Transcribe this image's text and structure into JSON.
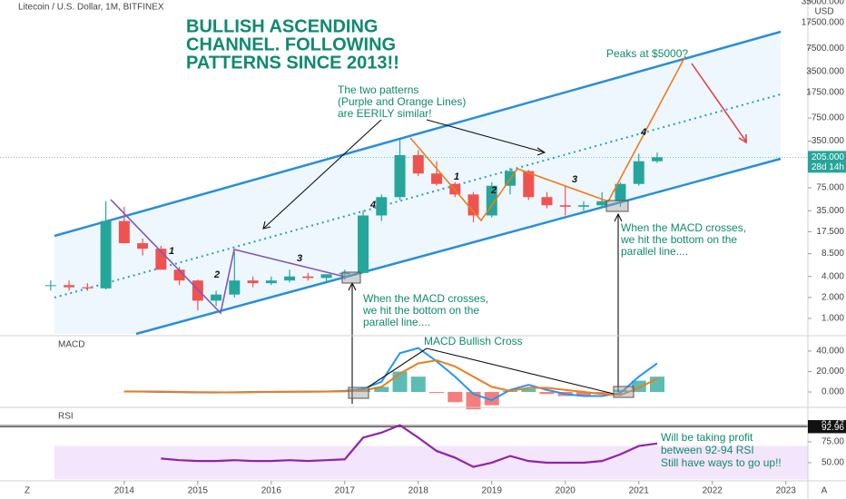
{
  "chart_data": [
    {
      "type": "candlestick",
      "title": "Litecoin / U.S. Dollar, 1M, BITFINEX",
      "y_unit": "USD",
      "log_scale": true,
      "up_color": "#26a69a",
      "down_color": "#ef5350",
      "xlim": [
        2012.31,
        2023.3
      ],
      "xticks": [
        2014,
        2015,
        2016,
        2017,
        2018,
        2019,
        2020,
        2021,
        2022,
        2023
      ],
      "ylim": [
        0.6,
        37000
      ],
      "yticks": [
        {
          "value": 1,
          "label": "1.000"
        },
        {
          "value": 2,
          "label": "2.000"
        },
        {
          "value": 4,
          "label": "4.000"
        },
        {
          "value": 8.5,
          "label": "8.500"
        },
        {
          "value": 17.5,
          "label": "17.500"
        },
        {
          "value": 35,
          "label": "35.000"
        },
        {
          "value": 75,
          "label": "75.000"
        },
        {
          "value": 350,
          "label": "350.000"
        },
        {
          "value": 750,
          "label": "750.000"
        },
        {
          "value": 1750,
          "label": "1750.000"
        },
        {
          "value": 3500,
          "label": "3500.000"
        },
        {
          "value": 7500,
          "label": "7500.000"
        },
        {
          "value": 17500,
          "label": "17500.000"
        },
        {
          "value": 35000,
          "label": "35000.000"
        }
      ],
      "x": [
        2013.0,
        2013.25,
        2013.5,
        2013.75,
        2014.0,
        2014.25,
        2014.5,
        2014.75,
        2015.0,
        2015.25,
        2015.5,
        2015.75,
        2016.0,
        2016.25,
        2016.5,
        2016.75,
        2017.0,
        2017.25,
        2017.5,
        2017.75,
        2018.0,
        2018.25,
        2018.5,
        2018.75,
        2019.0,
        2019.25,
        2019.5,
        2019.75,
        2020.0,
        2020.25,
        2020.5,
        2020.75,
        2021.0,
        2021.25
      ],
      "open": [
        3,
        3,
        2.8,
        2.7,
        25,
        12,
        10,
        5,
        3.5,
        1.8,
        2.2,
        3.5,
        3.2,
        3.5,
        4,
        3.8,
        4.3,
        4.5,
        30,
        55,
        220,
        120,
        85,
        60,
        30,
        80,
        130,
        55,
        42,
        40,
        42,
        48,
        85,
        180
      ],
      "high": [
        3.5,
        3.5,
        3.2,
        48,
        40,
        14,
        11,
        5.5,
        3.6,
        2.5,
        9,
        4,
        4,
        5,
        4.5,
        4.2,
        5,
        35,
        60,
        370,
        260,
        180,
        90,
        65,
        90,
        145,
        135,
        65,
        80,
        48,
        65,
        90,
        230,
        240
      ],
      "low": [
        2.5,
        2.5,
        2.5,
        2.6,
        12,
        8,
        6,
        3,
        1.3,
        1.5,
        2,
        2.8,
        3,
        3.3,
        3.5,
        3.4,
        3.6,
        4.5,
        25,
        50,
        110,
        80,
        55,
        24,
        28,
        60,
        50,
        38,
        30,
        35,
        40,
        40,
        80,
        170
      ],
      "close": [
        3,
        2.8,
        2.7,
        25,
        12,
        10,
        5,
        3.5,
        1.8,
        2.2,
        3.5,
        3.2,
        3.5,
        4,
        3.8,
        4.3,
        4.5,
        30,
        55,
        220,
        120,
        85,
        60,
        30,
        80,
        130,
        55,
        42,
        40,
        42,
        48,
        85,
        180,
        205
      ],
      "price_tag": {
        "value": 205,
        "label": "205.000",
        "countdown": "28d 14h"
      },
      "annotations": {
        "headline": [
          "BULLISH ASCENDING",
          "CHANNEL. FOLLOWING",
          "PATTERNS SINCE 2013!!"
        ],
        "peak": "Peaks at $5000?",
        "patterns": [
          "The two patterns",
          "(Purple and Orange Lines)",
          "are EERILY similar!"
        ],
        "macd_left": [
          "When the MACD crosses,",
          "we hit the bottom on the",
          "parallel line...."
        ],
        "macd_right": [
          "When the MACD crosses,",
          "we hit the bottom on the",
          "parallel line...."
        ],
        "waves": [
          "1",
          "2",
          "3",
          "4",
          "1",
          "2",
          "3",
          "4"
        ],
        "corner_left": "Z",
        "corner_right": "A"
      }
    },
    {
      "type": "macd",
      "title": "MACD",
      "annotation": "MACD Bullish Cross",
      "ylim": [
        -13.3,
        53.3
      ],
      "yticks": [
        {
          "value": 40,
          "label": "40.000"
        },
        {
          "value": 20,
          "label": "20.000"
        },
        {
          "value": 0,
          "label": "0.000"
        }
      ],
      "x": [
        2014.0,
        2014.25,
        2014.5,
        2014.75,
        2015.0,
        2015.25,
        2015.5,
        2015.75,
        2016.0,
        2016.25,
        2016.5,
        2016.75,
        2017.0,
        2017.25,
        2017.5,
        2017.75,
        2018.0,
        2018.25,
        2018.5,
        2018.75,
        2019.0,
        2019.25,
        2019.5,
        2019.75,
        2020.0,
        2020.25,
        2020.5,
        2020.75,
        2021.0,
        2021.25
      ],
      "series": [
        {
          "color": "#2196f3",
          "values": [
            0.5,
            0.3,
            0,
            -0.2,
            -0.4,
            -0.5,
            -0.3,
            0,
            0.1,
            0.2,
            0.3,
            0.5,
            1,
            3,
            10,
            38,
            43,
            30,
            15,
            -2,
            -8,
            2,
            7,
            2,
            -2,
            -4,
            -4,
            -1,
            15,
            28
          ]
        },
        {
          "color": "#ef7c1a",
          "values": [
            0.6,
            0.5,
            0.3,
            0,
            -0.2,
            -0.3,
            -0.4,
            -0.2,
            0,
            0.1,
            0.2,
            0.3,
            0.6,
            1.5,
            5,
            18,
            28,
            31,
            25,
            15,
            5,
            1,
            4,
            4,
            2,
            0,
            -2,
            -3,
            4,
            13
          ]
        }
      ],
      "histogram": [
        -0.1,
        -0.2,
        -0.3,
        -0.2,
        -0.2,
        -0.2,
        0.1,
        0.2,
        0.1,
        0.1,
        0.1,
        0.2,
        0.4,
        1.5,
        5,
        20,
        15,
        -1,
        -10,
        -17,
        -13,
        1,
        3,
        -2,
        -4,
        -4,
        -2,
        2,
        11,
        15
      ],
      "histogram_colors": [
        "#26a69a",
        "#ef5350"
      ]
    },
    {
      "type": "rsi",
      "title": "RSI",
      "color": "#8e24aa",
      "band": [
        30,
        70
      ],
      "band_color": "#f3e5fb",
      "ylim": [
        30.4,
        113
      ],
      "yticks": [
        {
          "value": 75,
          "label": "75.00"
        },
        {
          "value": 50,
          "label": "50.00"
        }
      ],
      "levels": [
        94.47,
        92.96
      ],
      "x": [
        2014.5,
        2014.75,
        2015.0,
        2015.25,
        2015.5,
        2015.75,
        2016.0,
        2016.25,
        2016.5,
        2016.75,
        2017.0,
        2017.25,
        2017.5,
        2017.75,
        2018.0,
        2018.25,
        2018.5,
        2018.75,
        2019.0,
        2019.25,
        2019.5,
        2019.75,
        2020.0,
        2020.25,
        2020.5,
        2020.75,
        2021.0,
        2021.25
      ],
      "values": [
        55,
        53,
        52,
        52,
        53,
        52,
        52,
        53,
        52,
        53,
        54,
        80,
        86,
        95,
        80,
        64,
        56,
        45,
        50,
        58,
        52,
        50,
        50,
        50,
        52,
        60,
        70,
        73
      ],
      "annotation": [
        "Will be taking profit",
        "between 92-94 RSI",
        "Still have ways to go up!!"
      ]
    }
  ]
}
